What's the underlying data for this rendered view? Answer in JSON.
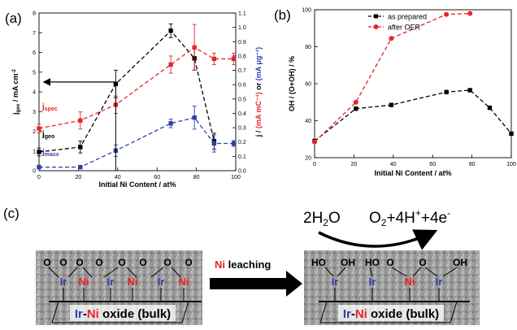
{
  "chart_data": [
    {
      "panel_label": "(a)",
      "type": "line",
      "xlabel": "Initial Ni Content / at%",
      "ylabel_left": "j_geo / mA cm⁻²",
      "ylabel_right": "j / (mA mC⁻¹) or (mA μg⁻¹)",
      "xlim": [
        0,
        100
      ],
      "ylim_left": [
        0,
        8
      ],
      "ylim_right": [
        0,
        1.1
      ],
      "x_ticks": [
        "0",
        "20",
        "40",
        "60",
        "80",
        "100"
      ],
      "y_ticks_left": [
        "0",
        "1",
        "2",
        "3",
        "4",
        "5",
        "6",
        "7",
        "8"
      ],
      "y_ticks_right": [
        "0.0",
        "0.1",
        "0.2",
        "0.3",
        "0.4",
        "0.5",
        "0.6",
        "0.7",
        "0.8",
        "0.9",
        "1.0",
        "1.1"
      ],
      "grid": false,
      "series": [
        {
          "name": "j_geo",
          "label_main": "j",
          "label_sub": "geo",
          "axis": "left",
          "color": "#000000",
          "marker": "square",
          "x": [
            0,
            21,
            39,
            67,
            79,
            89
          ],
          "y": [
            0.95,
            1.2,
            4.4,
            7.1,
            5.7,
            1.5
          ],
          "err": [
            0.2,
            0.3,
            0.7,
            0.35,
            0.6,
            0.4
          ]
        },
        {
          "name": "j_spec",
          "label_main": "j",
          "label_sub": "spec",
          "axis": "right",
          "color": "#e8242a",
          "marker": "square",
          "x": [
            0,
            21,
            39,
            67,
            79,
            89,
            99
          ],
          "y": [
            0.295,
            0.35,
            0.46,
            0.74,
            0.86,
            0.78,
            0.78
          ],
          "err": [
            0.03,
            0.06,
            0.06,
            0.06,
            0.16,
            0.04,
            0.04
          ]
        },
        {
          "name": "j_mass",
          "label_main": "j",
          "label_sub": "mass",
          "axis": "right",
          "color": "#2e3fa5",
          "marker": "square",
          "x": [
            0,
            21,
            39,
            67,
            79,
            89,
            99
          ],
          "y": [
            0.025,
            0.025,
            0.14,
            0.33,
            0.37,
            0.19,
            0.19
          ],
          "err": [
            0.01,
            0.01,
            0.04,
            0.03,
            0.08,
            0.06,
            0.02
          ]
        }
      ],
      "annotation_arrow": {
        "from_x": 39,
        "to_x": 0,
        "y": 4.5,
        "axis": "left"
      }
    },
    {
      "panel_label": "(b)",
      "type": "line",
      "xlabel": "Initial Ni Content / at%",
      "ylabel": "OH / (O+OH) / %",
      "xlim": [
        0,
        100
      ],
      "ylim": [
        20,
        100
      ],
      "x_ticks": [
        "0",
        "20",
        "40",
        "60",
        "80",
        "100"
      ],
      "y_ticks": [
        "20",
        "40",
        "60",
        "80",
        "100"
      ],
      "legend_position": "top-left",
      "grid": false,
      "series": [
        {
          "name": "as prepared",
          "color": "#000000",
          "marker": "square",
          "x": [
            0,
            21,
            39,
            67,
            79,
            89,
            100
          ],
          "y": [
            29,
            46.5,
            48.5,
            55.5,
            56.5,
            47,
            33
          ]
        },
        {
          "name": "after OER",
          "color": "#e8242a",
          "marker": "circle",
          "x": [
            0,
            21,
            39,
            67,
            79
          ],
          "y": [
            28.5,
            50,
            84.5,
            97.5,
            98
          ]
        }
      ]
    }
  ],
  "schematic": {
    "panel_label": "(c)",
    "left_surface": {
      "top_labels": [
        "O",
        "O",
        "O",
        "O",
        "O",
        "O",
        "O",
        "O"
      ],
      "metals": [
        {
          "text": "Ir",
          "color": "#2e3fa5"
        },
        {
          "text": "Ni",
          "color": "#e8242a"
        },
        {
          "text": "Ir",
          "color": "#2e3fa5"
        },
        {
          "text": "Ni",
          "color": "#e8242a"
        },
        {
          "text": "Ir",
          "color": "#2e3fa5"
        },
        {
          "text": "Ni",
          "color": "#e8242a"
        }
      ],
      "bulk_label": {
        "ir": "Ir",
        "dash": "-",
        "ni": "Ni",
        "rest": " oxide (bulk)"
      }
    },
    "process_arrow": {
      "ni": "Ni",
      "rest": " leaching"
    },
    "reaction": {
      "reactant": {
        "pre": "2H",
        "sub": "2",
        "post": "O"
      },
      "product": {
        "a": "O",
        "a_sub": "2",
        "b": "+4H",
        "b_sup": "+",
        "c": "+4e",
        "c_sup": "-"
      }
    },
    "right_surface": {
      "top_labels": [
        "HO",
        "OH",
        "HO",
        "O",
        "O",
        "OH"
      ],
      "metals": [
        {
          "text": "Ir",
          "color": "#2e3fa5"
        },
        {
          "text": "Ir",
          "color": "#2e3fa5"
        },
        {
          "text": "Ni",
          "color": "#e8242a"
        },
        {
          "text": "Ir",
          "color": "#2e3fa5"
        }
      ],
      "bulk_label": {
        "ir": "Ir",
        "dash": "-",
        "ni": "Ni",
        "rest": " oxide (bulk)"
      }
    }
  }
}
